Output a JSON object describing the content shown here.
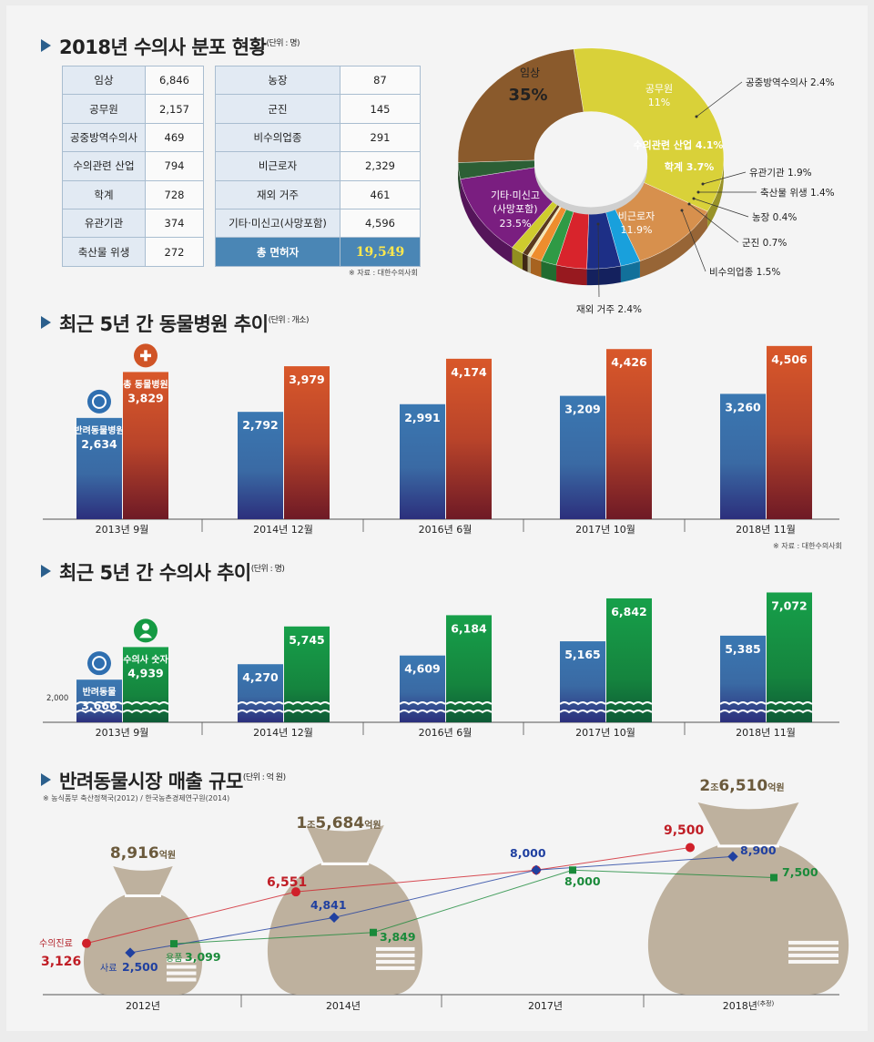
{
  "sections": {
    "distribution": {
      "title": "2018년 수의사 분포 현황",
      "unit": "(단위 : 명)"
    },
    "hospitals": {
      "title": "최근 5년 간 동물병원 추이",
      "unit": "(단위 : 개소)"
    },
    "vets": {
      "title": "최근 5년 간 수의사 추이",
      "unit": "(단위 : 명)"
    },
    "market": {
      "title": "반려동물시장 매출 규모",
      "unit": "(단위 : 억 원)"
    }
  },
  "table": {
    "left": [
      {
        "k": "임상",
        "v": "6,846"
      },
      {
        "k": "공무원",
        "v": "2,157"
      },
      {
        "k": "공중방역수의사",
        "v": "469"
      },
      {
        "k": "수의관련 산업",
        "v": "794"
      },
      {
        "k": "학계",
        "v": "728"
      },
      {
        "k": "유관기관",
        "v": "374"
      },
      {
        "k": "축산물 위생",
        "v": "272"
      }
    ],
    "right": [
      {
        "k": "농장",
        "v": "87"
      },
      {
        "k": "군진",
        "v": "145"
      },
      {
        "k": "비수의업종",
        "v": "291"
      },
      {
        "k": "비근로자",
        "v": "2,329"
      },
      {
        "k": "재외 거주",
        "v": "461"
      },
      {
        "k": "기타·미신고(사망포함)",
        "v": "4,596"
      }
    ],
    "total_label": "총 면허자",
    "total_value": "19,549",
    "source": "※ 자료 : 대한수의사회"
  },
  "hospitals_source": "※ 자료 : 대한수의사회",
  "market_source": "※ 농식품부 축산정책국(2012) / 한국농촌경제연구원(2014)",
  "chart_data": [
    {
      "type": "pie",
      "donut": true,
      "slices": [
        {
          "label": "임상",
          "value": 35,
          "display": "35%",
          "color": "#d9d139"
        },
        {
          "label": "공무원",
          "value": 11,
          "display": "11%",
          "color": "#d7904d"
        },
        {
          "label": "공중방역수의사",
          "value": 2.4,
          "display": "2.4%",
          "color": "#19a0dc"
        },
        {
          "label": "수의관련 산업",
          "value": 4.1,
          "display": "4.1%",
          "color": "#1d2f86"
        },
        {
          "label": "학계",
          "value": 3.7,
          "display": "3.7%",
          "color": "#d8242c"
        },
        {
          "label": "유관기관",
          "value": 1.9,
          "display": "1.9%",
          "color": "#2f9a45"
        },
        {
          "label": "축산물 위생",
          "value": 1.4,
          "display": "1.4%",
          "color": "#ee8d2e"
        },
        {
          "label": "농장",
          "value": 0.4,
          "display": "0.4%",
          "color": "#f3e6b0"
        },
        {
          "label": "군진",
          "value": 0.7,
          "display": "0.7%",
          "color": "#5b3a1e"
        },
        {
          "label": "비수의업종",
          "value": 1.5,
          "display": "1.5%",
          "color": "#cfcc2e"
        },
        {
          "label": "비근로자",
          "value": 11.9,
          "display": "11.9%",
          "color": "#7a1e80"
        },
        {
          "label": "재외 거주",
          "value": 2.4,
          "display": "2.4%",
          "color": "#2c5f35"
        },
        {
          "label": "기타·미신고(사망포함)",
          "value": 23.5,
          "display": "23.5%",
          "color": "#8a5a2c"
        }
      ]
    },
    {
      "type": "bar",
      "categories": [
        "2013년 9월",
        "2014년 12월",
        "2016년 6월",
        "2017년 10월",
        "2018년 11월"
      ],
      "series": [
        {
          "name": "반려동물병원",
          "values": [
            2634,
            2792,
            2991,
            3209,
            3260
          ],
          "labels": [
            "2,634",
            "2,792",
            "2,991",
            "3,209",
            "3,260"
          ],
          "color": "#3c79b0"
        },
        {
          "name": "총 동물병원",
          "values": [
            3829,
            3979,
            4174,
            4426,
            4506
          ],
          "labels": [
            "3,829",
            "3,979",
            "4,174",
            "4,426",
            "4,506"
          ],
          "color": "#d05426"
        }
      ]
    },
    {
      "type": "bar",
      "categories": [
        "2013년 9월",
        "2014년 12월",
        "2016년 6월",
        "2017년 10월",
        "2018년 11월"
      ],
      "axis_break_label": "2,000",
      "series": [
        {
          "name": "반려동물",
          "values": [
            3666,
            4270,
            4609,
            5165,
            5385
          ],
          "labels": [
            "3,666",
            "4,270",
            "4,609",
            "5,165",
            "5,385"
          ],
          "color": "#3c79b0"
        },
        {
          "name": "수의사 숫자",
          "values": [
            4939,
            5745,
            6184,
            6842,
            7072
          ],
          "labels": [
            "4,939",
            "5,745",
            "6,184",
            "6,842",
            "7,072"
          ],
          "color": "#159a43"
        }
      ]
    },
    {
      "type": "line",
      "categories": [
        "2012년",
        "2014년",
        "2017년",
        "2018년"
      ],
      "category_note": "(추정)",
      "totals": [
        {
          "label": "8,916",
          "unit": "억원"
        },
        {
          "prefix": "1",
          "jo": "조",
          "label": "5,684",
          "unit": "억원"
        },
        {
          "prefix": "2",
          "jo": "조",
          "label": "6,510",
          "unit": "억원"
        }
      ],
      "series": [
        {
          "name": "수의진료",
          "values": [
            3126,
            6551,
            8000,
            9500
          ],
          "labels": [
            "3,126",
            "6,551",
            "8,000",
            "9,500"
          ],
          "color": "#d0202a"
        },
        {
          "name": "사료",
          "values": [
            2500,
            4841,
            8000,
            8900
          ],
          "labels": [
            "2,500",
            "4,841",
            "8,000",
            "8,900"
          ],
          "color": "#2040a0"
        },
        {
          "name": "용품",
          "values": [
            3099,
            3849,
            8000,
            7500
          ],
          "labels": [
            "3,099",
            "3,849",
            "8,000",
            "7,500"
          ],
          "color": "#1a8a3a"
        }
      ]
    }
  ]
}
